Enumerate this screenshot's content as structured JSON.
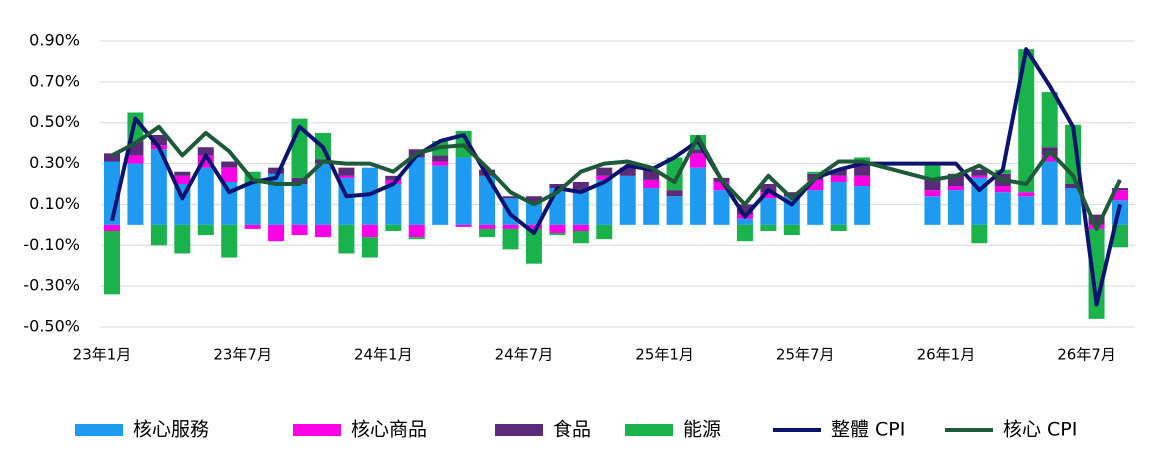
{
  "chart_data": {
    "type": "bar_line",
    "categories": [
      "23年1月",
      null,
      null,
      null,
      null,
      null,
      "23年7月",
      null,
      null,
      null,
      null,
      null,
      "24年1月",
      null,
      null,
      null,
      null,
      null,
      "24年7月",
      null,
      null,
      null,
      null,
      null,
      "25年1月",
      null,
      null,
      null,
      null,
      null,
      "25年7月",
      null,
      null,
      null,
      null,
      null,
      "26年1月",
      null,
      null,
      null,
      null,
      null,
      "26年7月",
      null
    ],
    "series": [
      {
        "name": "核心服務",
        "color": "#1e9bf0",
        "kind": "bar",
        "values": [
          0.31,
          0.3,
          0.37,
          0.2,
          0.28,
          0.21,
          0.2,
          0.25,
          0.2,
          0.3,
          0.23,
          0.28,
          0.2,
          0.33,
          0.29,
          0.33,
          0.24,
          0.13,
          0.11,
          0.18,
          0.17,
          0.22,
          0.24,
          0.18,
          0.14,
          0.28,
          0.17,
          0.03,
          0.13,
          0.14,
          0.17,
          0.21,
          0.19,
          null,
          null,
          0.14,
          0.17,
          0.23,
          0.16,
          0.14,
          0.31,
          0.18,
          0.0,
          0.12
        ]
      },
      {
        "name": "核心商品",
        "color": "#ff00e6",
        "kind": "bar",
        "values": [
          -0.03,
          0.04,
          0.02,
          0.04,
          0.06,
          0.07,
          -0.02,
          -0.08,
          -0.05,
          -0.06,
          0.01,
          -0.06,
          0.02,
          -0.06,
          0.02,
          -0.01,
          -0.02,
          -0.02,
          -0.02,
          -0.04,
          -0.03,
          0.02,
          0.0,
          0.04,
          0.0,
          0.07,
          0.04,
          0.02,
          0.03,
          0.0,
          0.05,
          0.03,
          0.05,
          null,
          null,
          0.03,
          0.02,
          0.01,
          0.03,
          0.02,
          0.03,
          0.0,
          -0.02,
          0.05
        ]
      },
      {
        "name": "食品",
        "color": "#5c2a7a",
        "kind": "bar",
        "values": [
          0.04,
          0.07,
          0.05,
          0.02,
          0.04,
          0.03,
          0.0,
          0.03,
          0.03,
          0.02,
          0.04,
          0.0,
          0.02,
          0.04,
          0.03,
          0.0,
          0.03,
          0.01,
          0.03,
          0.02,
          0.04,
          0.04,
          0.04,
          0.05,
          0.03,
          0.02,
          0.02,
          0.05,
          0.04,
          0.02,
          0.03,
          0.03,
          0.06,
          null,
          null,
          0.06,
          0.06,
          0.03,
          0.06,
          0.0,
          0.04,
          0.02,
          0.05,
          0.01
        ]
      },
      {
        "name": "能源",
        "color": "#19b24b",
        "kind": "bar",
        "values": [
          -0.31,
          0.14,
          -0.1,
          -0.14,
          -0.05,
          -0.16,
          0.06,
          0.0,
          0.29,
          0.13,
          -0.14,
          -0.1,
          -0.03,
          -0.01,
          0.07,
          0.13,
          -0.04,
          -0.1,
          -0.17,
          -0.01,
          -0.06,
          -0.07,
          0.0,
          0.0,
          0.16,
          0.07,
          0.0,
          -0.08,
          -0.03,
          -0.05,
          0.01,
          -0.03,
          0.03,
          null,
          null,
          0.06,
          0.0,
          -0.09,
          0.02,
          0.7,
          0.27,
          0.29,
          -0.44,
          -0.11
        ]
      },
      {
        "name": "整體 CPI",
        "color": "#0c1270",
        "kind": "line",
        "values": [
          0.02,
          0.52,
          0.38,
          0.13,
          0.34,
          0.16,
          0.21,
          0.23,
          0.48,
          0.38,
          0.14,
          0.15,
          0.2,
          0.34,
          0.41,
          0.44,
          0.24,
          0.05,
          -0.04,
          0.18,
          0.16,
          0.21,
          0.29,
          0.27,
          0.33,
          0.41,
          0.22,
          0.04,
          0.17,
          0.1,
          0.23,
          0.27,
          0.3,
          0.3,
          0.3,
          0.3,
          0.3,
          0.17,
          0.27,
          0.86,
          0.68,
          0.48,
          -0.39,
          0.1
        ]
      },
      {
        "name": "核心 CPI",
        "color": "#1e5a3a",
        "kind": "line",
        "values": [
          0.34,
          0.4,
          0.48,
          0.34,
          0.45,
          0.36,
          0.22,
          0.2,
          0.2,
          0.31,
          0.3,
          0.3,
          0.26,
          0.35,
          0.38,
          0.39,
          0.28,
          0.16,
          0.1,
          0.16,
          0.26,
          0.3,
          0.31,
          0.28,
          0.21,
          0.43,
          0.22,
          0.1,
          0.24,
          0.13,
          0.23,
          0.31,
          0.31,
          0.28,
          0.25,
          0.22,
          0.24,
          0.29,
          0.22,
          0.2,
          0.36,
          0.24,
          -0.02,
          0.22
        ]
      }
    ],
    "ylim": [
      -0.5,
      0.9
    ],
    "yticks": [
      {
        "value": -0.5,
        "label": "-0.50%"
      },
      {
        "value": -0.3,
        "label": "-0.30%"
      },
      {
        "value": -0.1,
        "label": "-0.10%"
      },
      {
        "value": 0.1,
        "label": "0.10%"
      },
      {
        "value": 0.3,
        "label": "0.30%"
      },
      {
        "value": 0.5,
        "label": "0.50%"
      },
      {
        "value": 0.7,
        "label": "0.70%"
      },
      {
        "value": 0.9,
        "label": "0.90%"
      }
    ],
    "grid": true
  }
}
